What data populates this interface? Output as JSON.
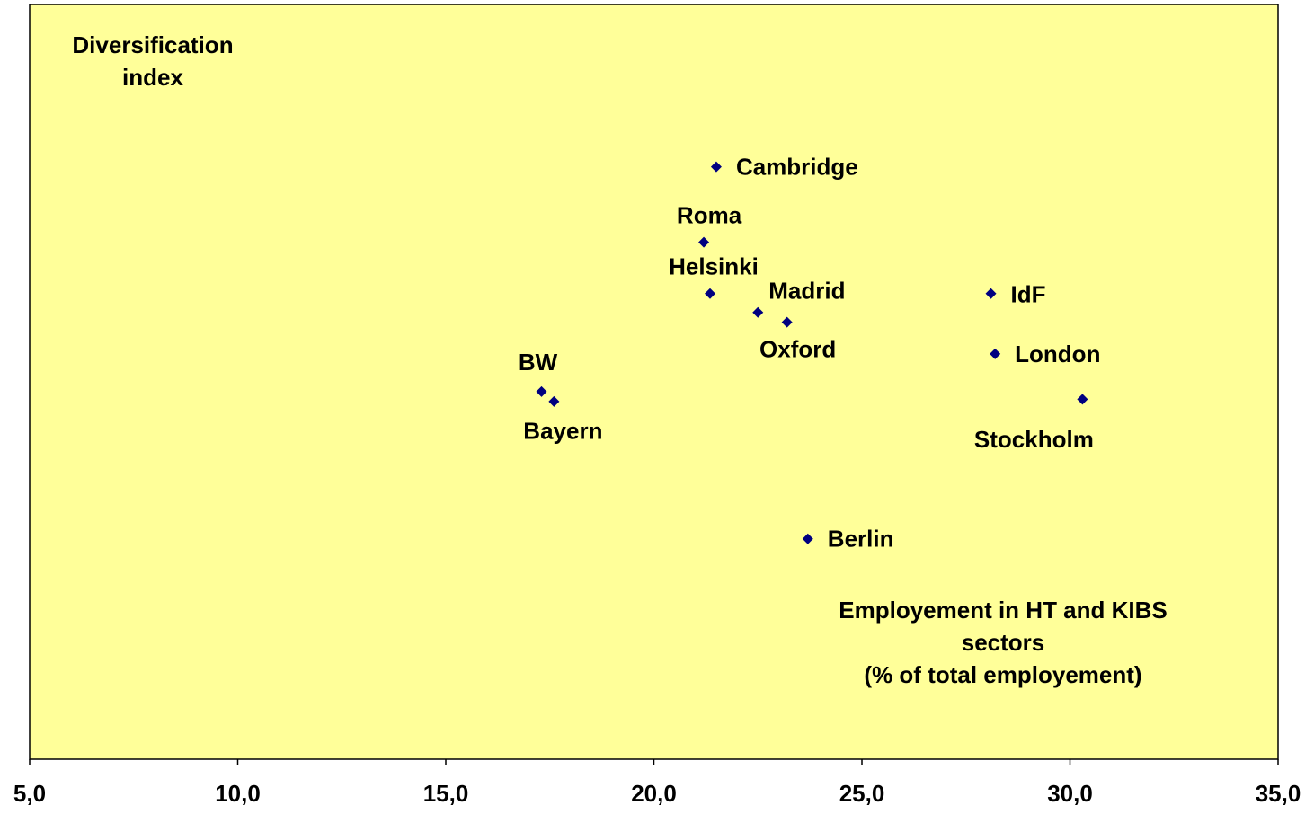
{
  "chart_data": {
    "type": "scatter",
    "y_label": [
      "Diversification",
      "index"
    ],
    "x_label": [
      "Employement in HT and KIBS",
      "sectors",
      "(% of total employement)"
    ],
    "series": [
      {
        "color": "#000080",
        "labels": [
          "Cambridge",
          "Roma",
          "Helsinki",
          "Madrid",
          "Oxford",
          "IdF",
          "London",
          "Stockholm",
          "BW",
          "Bayern",
          "Berlin"
        ],
        "x": [
          21.5,
          21.2,
          21.35,
          22.5,
          23.2,
          28.1,
          28.2,
          30.3,
          17.3,
          17.6,
          23.7
        ],
        "values": [
          78.5,
          68.5,
          61.7,
          59.2,
          57.9,
          61.7,
          53.7,
          47.7,
          48.7,
          47.4,
          29.2
        ]
      }
    ],
    "xlim": [
      5,
      35
    ],
    "xticks": [
      {
        "value": 5,
        "label": "5,0"
      },
      {
        "value": 10,
        "label": "10,0"
      },
      {
        "value": 15,
        "label": "15,0"
      },
      {
        "value": 20,
        "label": "20,0"
      },
      {
        "value": 25,
        "label": "25,0"
      },
      {
        "value": 30,
        "label": "30,0"
      },
      {
        "value": 35,
        "label": "35,0"
      }
    ],
    "ylim": [
      0,
      100
    ],
    "background": "#ffff99"
  }
}
